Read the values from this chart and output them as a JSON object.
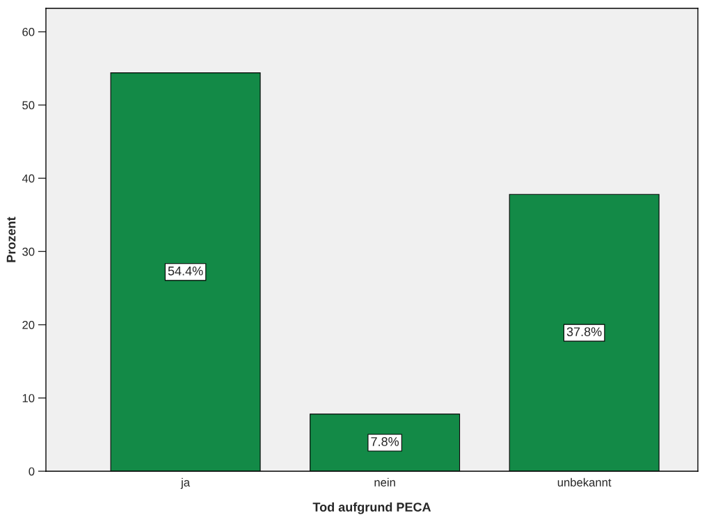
{
  "chart_data": {
    "type": "bar",
    "xlabel": "Tod aufgrund PECA",
    "ylabel": "Prozent",
    "categories": [
      "ja",
      "nein",
      "unbekannt"
    ],
    "values": [
      54.4,
      7.8,
      37.8
    ],
    "value_labels": [
      "54.4%",
      "7.8%",
      "37.8%"
    ],
    "color": "#138a47",
    "ylim": [
      0,
      63.2
    ],
    "yticks": [
      0,
      10,
      20,
      30,
      40,
      50,
      60
    ],
    "grid": false,
    "legend": false
  }
}
